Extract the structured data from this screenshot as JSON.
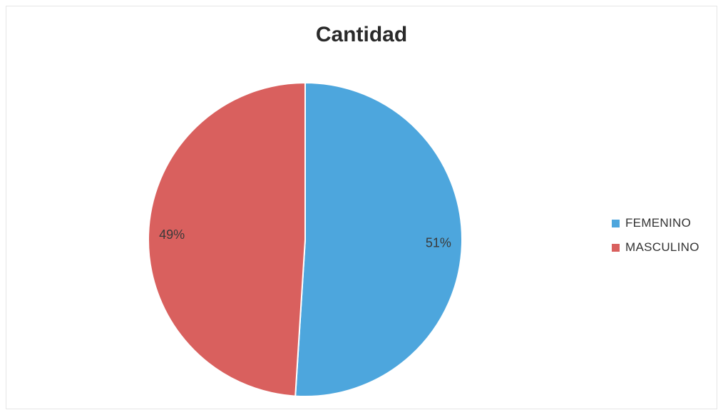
{
  "chart_data": {
    "type": "pie",
    "title": "Cantidad",
    "categories": [
      "FEMENINO",
      "MASCULINO"
    ],
    "values": [
      51,
      49
    ],
    "data_labels": [
      "51%",
      "49%"
    ],
    "colors": [
      "#4DA6DD",
      "#D9605E"
    ],
    "legend_position": "right"
  }
}
